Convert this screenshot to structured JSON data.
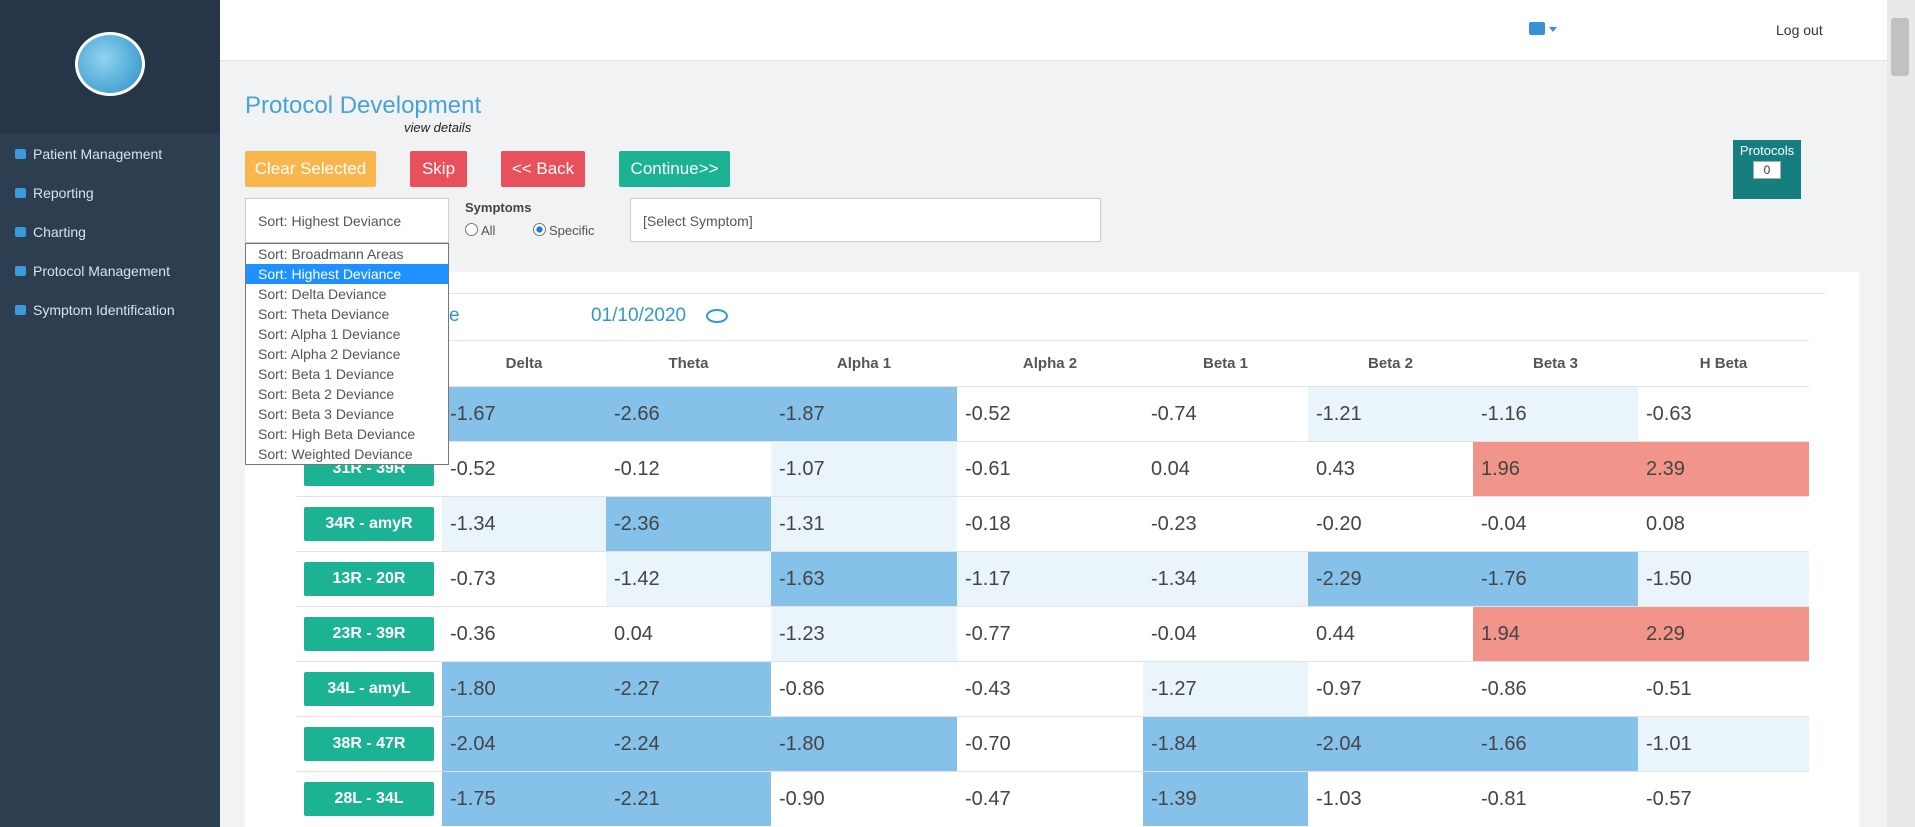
{
  "sidebar": {
    "nav": [
      "Patient Management",
      "Reporting",
      "Charting",
      "Protocol Management",
      "Symptom Identification"
    ]
  },
  "header": {
    "logout": "Log out"
  },
  "page": {
    "title": "Protocol Development",
    "subtitle": "view details",
    "buttons": [
      "Clear Selected",
      "Skip",
      "<< Back",
      "Continue>>"
    ],
    "sort": {
      "selected": "Sort: Highest Deviance",
      "options": [
        "Sort: Broadmann Areas",
        "Sort: Highest Deviance",
        "Sort: Delta Deviance",
        "Sort: Theta Deviance",
        "Sort: Alpha 1 Deviance",
        "Sort: Alpha 2 Deviance",
        "Sort: Beta 1 Deviance",
        "Sort: Beta 2 Deviance",
        "Sort: Beta 3 Deviance",
        "Sort: High Beta Deviance",
        "Sort: Weighted Deviance"
      ],
      "highlighted": 1
    },
    "symptoms": {
      "label": "Symptoms",
      "options": [
        "All",
        "Specific"
      ],
      "checked": 1,
      "select": "[Select Symptom]"
    },
    "protocols": {
      "label": "Protocols",
      "count": "0"
    }
  },
  "panel": {
    "heading": "e",
    "date": "01/10/2020",
    "columns": [
      "Delta",
      "Theta",
      "Alpha 1",
      "Alpha 2",
      "Beta 1",
      "Beta 2",
      "Beta 3",
      "H Beta"
    ],
    "rows": [
      {
        "label": null,
        "cells": [
          "-1.67",
          "-2.66",
          "-1.87",
          "-0.52",
          "-0.74",
          "-1.21",
          "-1.16",
          "-0.63"
        ],
        "shades": [
          "d",
          "d",
          "d",
          "w",
          "w",
          "l",
          "l",
          "w"
        ]
      },
      {
        "label": "31R - 39R",
        "cells": [
          "-0.52",
          "-0.12",
          "-1.07",
          "-0.61",
          "0.04",
          "0.43",
          "1.96",
          "2.39"
        ],
        "shades": [
          "w",
          "w",
          "l",
          "w",
          "w",
          "w",
          "r",
          "r"
        ]
      },
      {
        "label": "34R - amyR",
        "cells": [
          "-1.34",
          "-2.36",
          "-1.31",
          "-0.18",
          "-0.23",
          "-0.20",
          "-0.04",
          "0.08"
        ],
        "shades": [
          "l",
          "d",
          "l",
          "w",
          "w",
          "w",
          "w",
          "w"
        ]
      },
      {
        "label": "13R - 20R",
        "cells": [
          "-0.73",
          "-1.42",
          "-1.63",
          "-1.17",
          "-1.34",
          "-2.29",
          "-1.76",
          "-1.50"
        ],
        "shades": [
          "w",
          "l",
          "d",
          "l",
          "l",
          "d",
          "d",
          "l"
        ]
      },
      {
        "label": "23R - 39R",
        "cells": [
          "-0.36",
          "0.04",
          "-1.23",
          "-0.77",
          "-0.04",
          "0.44",
          "1.94",
          "2.29"
        ],
        "shades": [
          "w",
          "w",
          "l",
          "w",
          "w",
          "w",
          "r",
          "r"
        ]
      },
      {
        "label": "34L - amyL",
        "cells": [
          "-1.80",
          "-2.27",
          "-0.86",
          "-0.43",
          "-1.27",
          "-0.97",
          "-0.86",
          "-0.51"
        ],
        "shades": [
          "d",
          "d",
          "w",
          "w",
          "l",
          "w",
          "w",
          "w"
        ]
      },
      {
        "label": "38R - 47R",
        "cells": [
          "-2.04",
          "-2.24",
          "-1.80",
          "-0.70",
          "-1.84",
          "-2.04",
          "-1.66",
          "-1.01"
        ],
        "shades": [
          "d",
          "d",
          "d",
          "w",
          "d",
          "d",
          "d",
          "l"
        ]
      },
      {
        "label": "28L - 34L",
        "cells": [
          "-1.75",
          "-2.21",
          "-0.90",
          "-0.47",
          "-1.39",
          "-1.03",
          "-0.81",
          "-0.57"
        ],
        "shades": [
          "d",
          "d",
          "w",
          "w",
          "d",
          "w",
          "w",
          "w"
        ]
      }
    ]
  }
}
